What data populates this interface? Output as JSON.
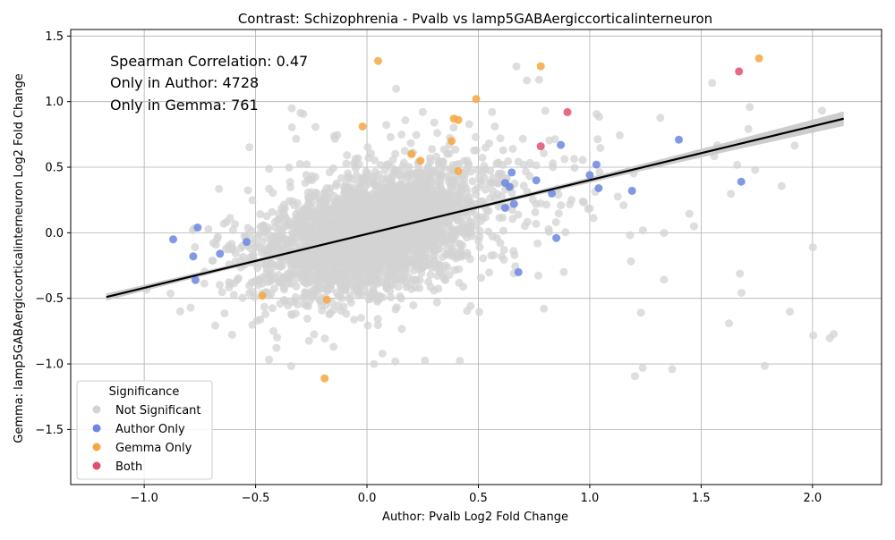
{
  "chart_data": {
    "type": "scatter",
    "title": "Contrast: Schizophrenia - Pvalb vs lamp5GABAergiccorticalinterneuron",
    "xlabel": "Author: Pvalb Log2 Fold Change",
    "ylabel": "Gemma: lamp5GABAergiccorticalinterneuron Log2 Fold Change",
    "xlim": [
      -1.33,
      2.31
    ],
    "ylim": [
      -1.92,
      1.55
    ],
    "x_ticks": [
      -1.0,
      -0.5,
      0.0,
      0.5,
      1.0,
      1.5,
      2.0
    ],
    "x_tick_labels": [
      "−1.0",
      "−0.5",
      "0.0",
      "0.5",
      "1.0",
      "1.5",
      "2.0"
    ],
    "y_ticks": [
      -1.5,
      -1.0,
      -0.5,
      0.0,
      0.5,
      1.0,
      1.5
    ],
    "y_tick_labels": [
      "−1.5",
      "−1.0",
      "−0.5",
      "0.0",
      "0.5",
      "1.0",
      "1.5"
    ],
    "grid": true,
    "annotations": [
      "Spearman Correlation: 0.47",
      "Only in Author: 4728",
      "Only in Gemma: 761"
    ],
    "legend": {
      "title": "Significance",
      "placement": "lower-left",
      "entries": [
        "Not Significant",
        "Author Only",
        "Gemma Only",
        "Both"
      ]
    },
    "colors": {
      "not_significant": "#d3d3d3",
      "author_only": "#6b87e0",
      "gemma_only": "#f5a742",
      "both": "#e0506e",
      "regression": "#000000",
      "ci_band": "#c8c8c8"
    },
    "regression_line": {
      "x": [
        -1.17,
        2.14
      ],
      "y": [
        -0.49,
        0.87
      ]
    },
    "series": [
      {
        "name": "Both",
        "color_key": "both",
        "x": [
          0.78,
          0.9,
          1.67
        ],
        "y": [
          0.66,
          0.92,
          1.23
        ]
      },
      {
        "name": "Gemma Only",
        "color_key": "gemma_only",
        "x": [
          0.05,
          0.78,
          1.76,
          0.49,
          -0.02,
          0.39,
          0.38,
          0.41,
          0.2,
          0.24,
          0.41,
          -0.47,
          -0.18,
          -0.19
        ],
        "y": [
          1.31,
          1.27,
          1.33,
          1.02,
          0.81,
          0.87,
          0.7,
          0.86,
          0.6,
          0.55,
          0.47,
          -0.48,
          -0.51,
          -1.11
        ]
      },
      {
        "name": "Author Only",
        "color_key": "author_only",
        "x": [
          1.4,
          0.87,
          1.03,
          1.0,
          1.04,
          1.19,
          1.68,
          0.76,
          0.83,
          0.62,
          0.64,
          0.66,
          0.62,
          0.65,
          0.85,
          0.68,
          -0.87,
          -0.76,
          -0.78,
          -0.66,
          -0.54,
          -0.77
        ],
        "y": [
          0.71,
          0.67,
          0.52,
          0.44,
          0.34,
          0.32,
          0.39,
          0.4,
          0.3,
          0.38,
          0.35,
          0.22,
          0.19,
          0.46,
          -0.04,
          -0.3,
          -0.05,
          0.04,
          -0.18,
          -0.16,
          -0.07,
          -0.36
        ]
      }
    ]
  }
}
